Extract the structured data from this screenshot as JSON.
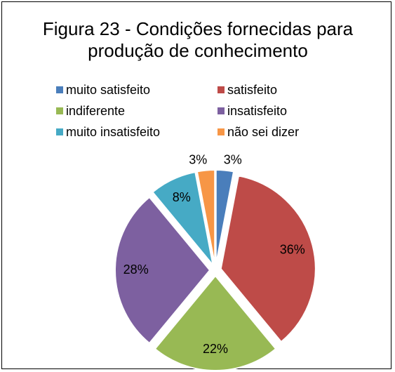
{
  "chart_data": {
    "type": "pie",
    "title": "Figura 23 - Condições fornecidas para produção de conhecimento",
    "categories": [
      "muito satisfeito",
      "satisfeito",
      "indiferente",
      "insatisfeito",
      "muito insatisfeito",
      "não sei dizer"
    ],
    "values": [
      3,
      36,
      22,
      28,
      8,
      3
    ],
    "value_labels": [
      "3%",
      "36%",
      "22%",
      "28%",
      "8%",
      "3%"
    ],
    "colors": [
      "#4a7ebb",
      "#be4b48",
      "#98b954",
      "#7d60a0",
      "#46aac5",
      "#f79646"
    ],
    "legend": "top"
  }
}
